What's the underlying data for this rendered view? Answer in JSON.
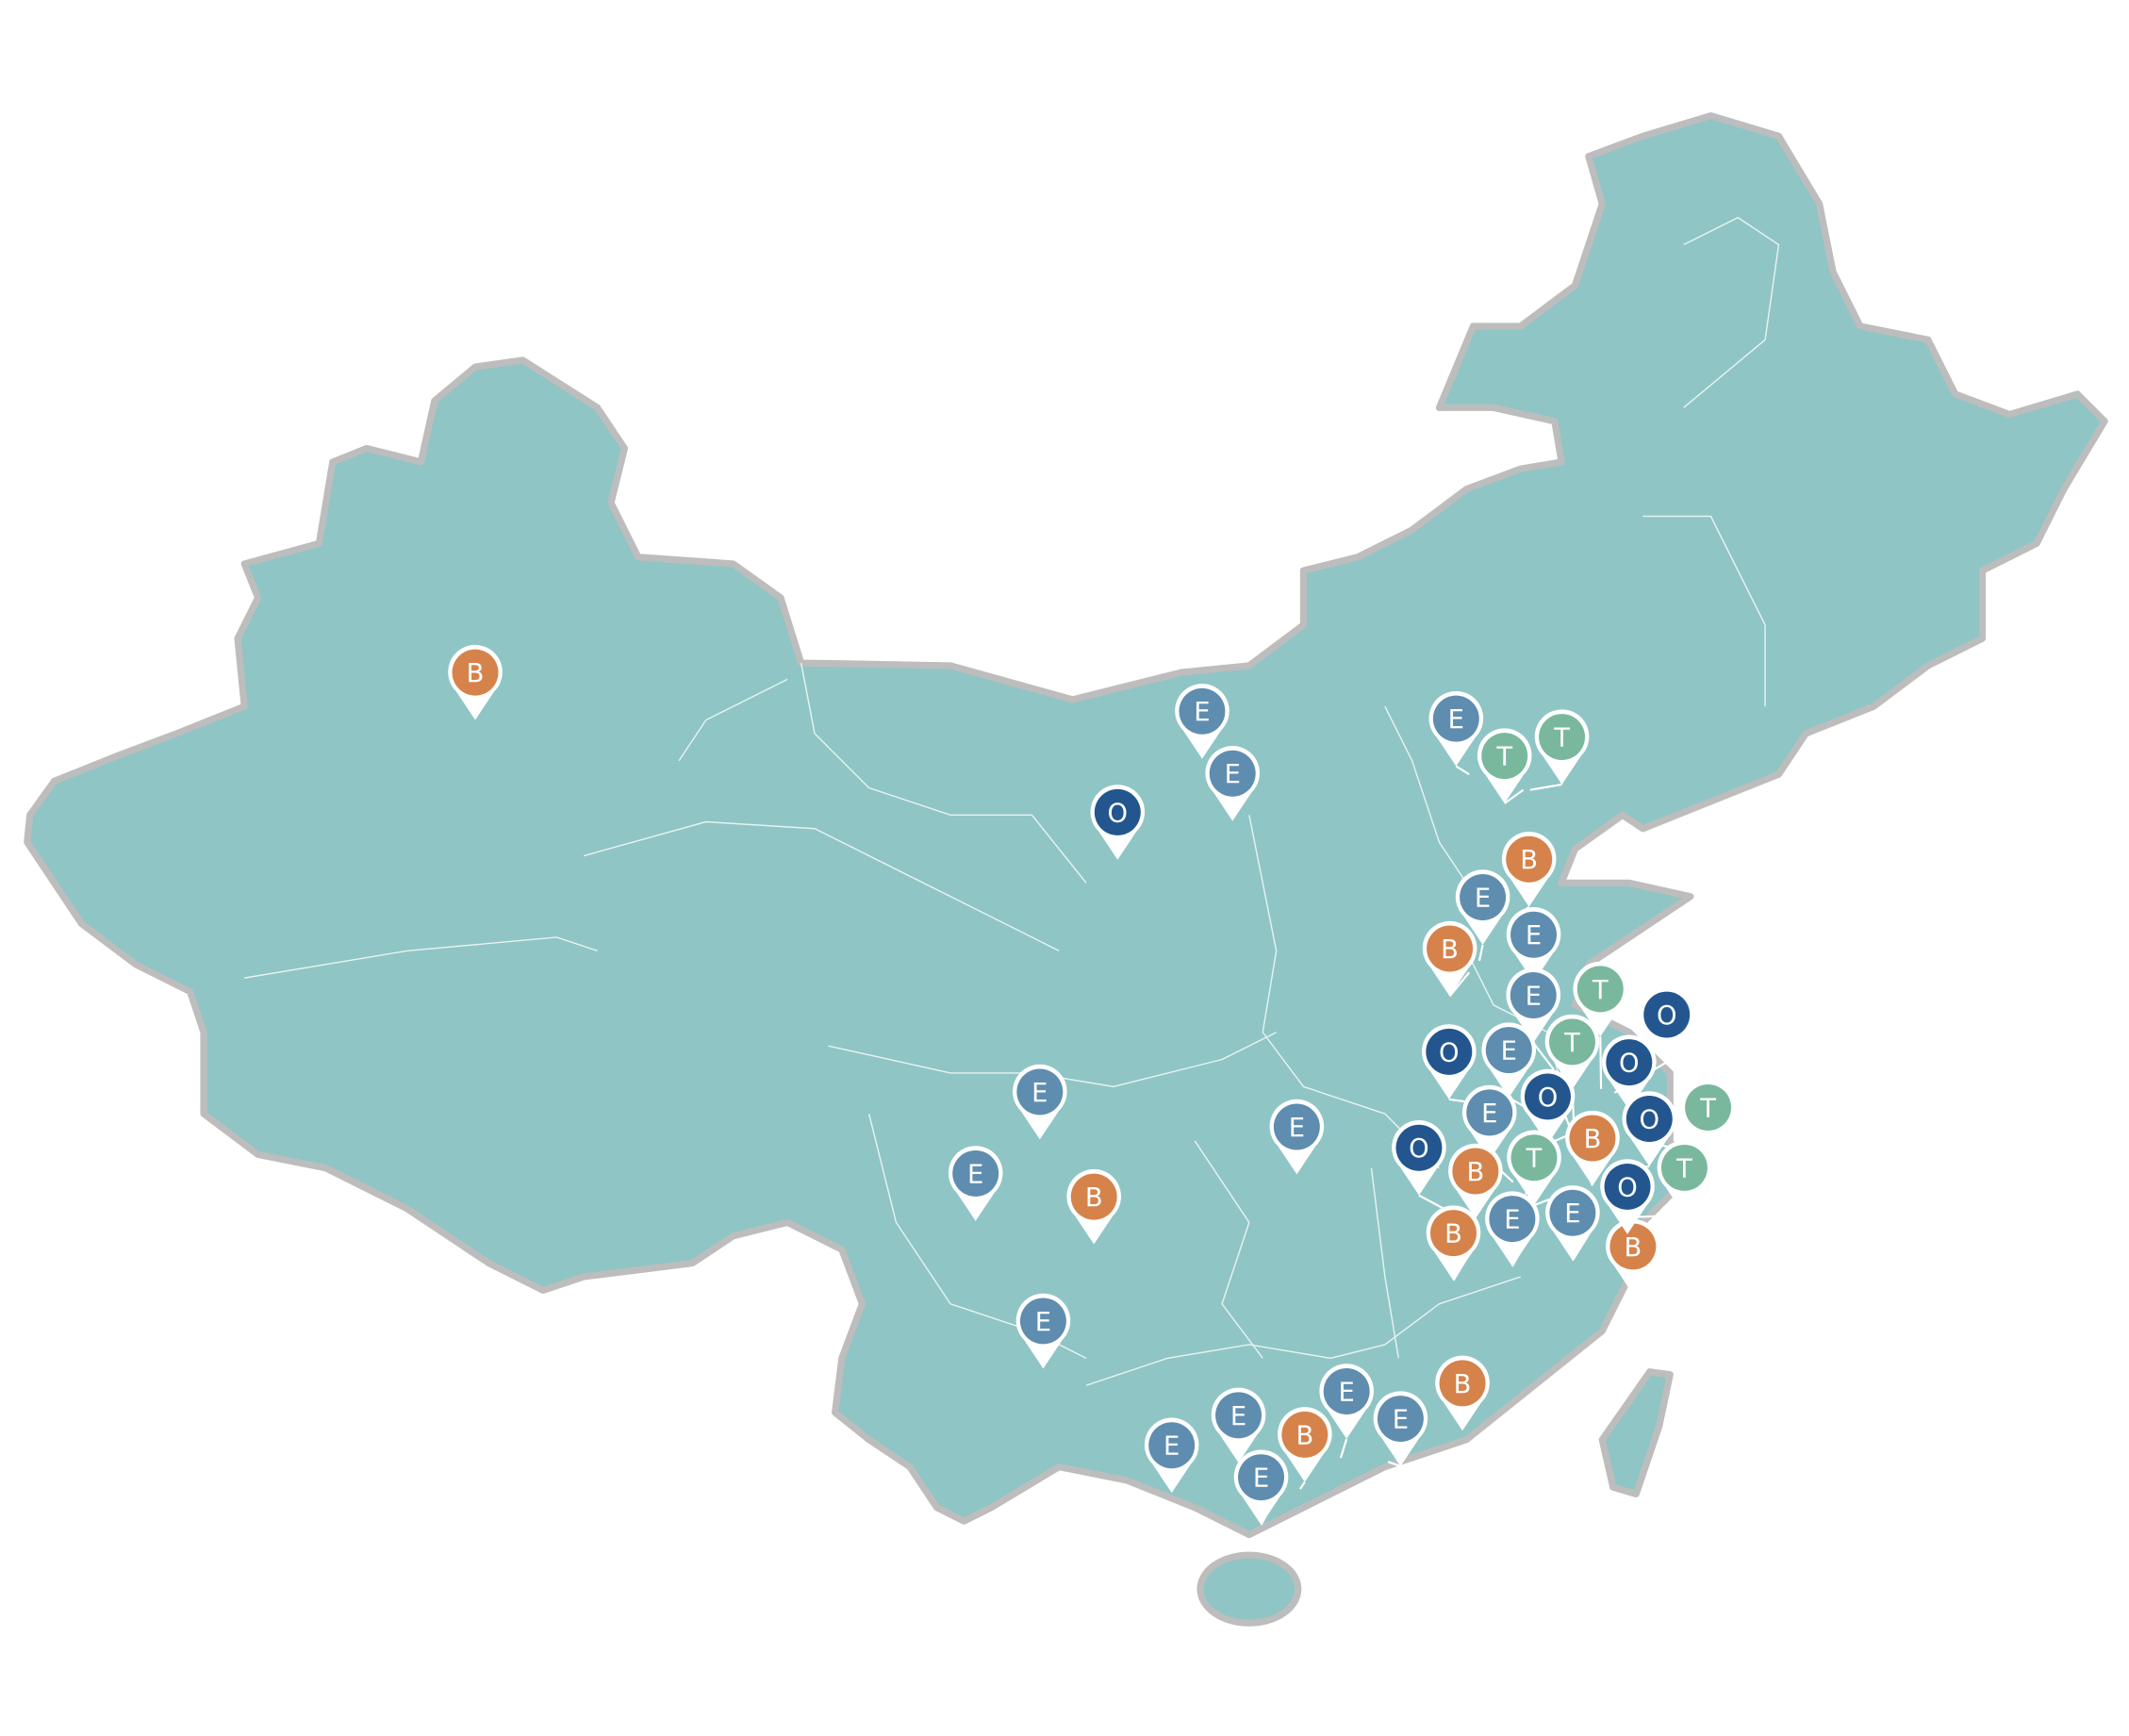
{
  "map": {
    "region_fill": "#8fc5c5",
    "border_color": "#bdbdbd",
    "province_line_color": "#e6f2f2"
  },
  "marker_colors": {
    "B": "#d5834b",
    "E": "#5f8db0",
    "O": "#23568f",
    "T": "#7ab89e"
  },
  "markers": [
    {
      "label": "B",
      "lon": 87.6,
      "lat": 43.8
    },
    {
      "label": "E",
      "lon": 109.1,
      "lat": 42.8
    },
    {
      "label": "E",
      "lon": 110.0,
      "lat": 41.2
    },
    {
      "label": "O",
      "lon": 106.6,
      "lat": 40.2
    },
    {
      "label": "E",
      "lon": 117.0,
      "lat": 42.4
    },
    {
      "label": "T",
      "lon": 118.6,
      "lat": 42.0
    },
    {
      "label": "T",
      "lon": 118.8,
      "lat": 42.0
    },
    {
      "label": "E",
      "lon": 117.3,
      "lat": 37.6
    },
    {
      "label": "B",
      "lon": 118.4,
      "lat": 38.7
    },
    {
      "label": "B",
      "lon": 117.0,
      "lat": 37.3
    },
    {
      "label": "E",
      "lon": 118.8,
      "lat": 37.1
    },
    {
      "label": "E",
      "lon": 119.5,
      "lat": 34.8
    },
    {
      "label": "O",
      "lon": 117.5,
      "lat": 33.9
    },
    {
      "label": "T",
      "lon": 120.9,
      "lat": 34.3
    },
    {
      "label": "O",
      "lon": 121.3,
      "lat": 34.2
    },
    {
      "label": "B",
      "lon": 119.8,
      "lat": 33.7
    },
    {
      "label": "E",
      "lon": 119.3,
      "lat": 33.5
    },
    {
      "label": "T",
      "lon": 120.1,
      "lat": 33.3
    },
    {
      "label": "O",
      "lon": 119.9,
      "lat": 33.1
    },
    {
      "label": "T",
      "lon": 122.4,
      "lat": 32.9
    },
    {
      "label": "O",
      "lon": 122.1,
      "lat": 32.9
    },
    {
      "label": "O",
      "lon": 121.1,
      "lat": 32.2
    },
    {
      "label": "E",
      "lon": 118.3,
      "lat": 31.9
    },
    {
      "label": "T",
      "lon": 119.8,
      "lat": 31.6
    },
    {
      "label": "B",
      "lon": 116.9,
      "lat": 31.0
    },
    {
      "label": "O",
      "lon": 116.5,
      "lat": 31.1
    },
    {
      "label": "E",
      "lon": 118.9,
      "lat": 30.7
    },
    {
      "label": "E",
      "lon": 120.5,
      "lat": 30.5
    },
    {
      "label": "B",
      "lon": 121.1,
      "lat": 30.2
    },
    {
      "label": "T",
      "lon": 121.9,
      "lat": 31.0
    },
    {
      "label": "O",
      "lon": 121.6,
      "lat": 31.1
    },
    {
      "label": "B",
      "lon": 116.9,
      "lat": 29.9
    },
    {
      "label": "E",
      "lon": 111.9,
      "lat": 32.1
    },
    {
      "label": "E",
      "lon": 104.3,
      "lat": 33.0
    },
    {
      "label": "E",
      "lon": 102.4,
      "lat": 30.9
    },
    {
      "label": "B",
      "lon": 105.9,
      "lat": 30.3
    },
    {
      "label": "E",
      "lon": 104.4,
      "lat": 27.1
    },
    {
      "label": "B",
      "lon": 116.8,
      "lat": 25.5
    },
    {
      "label": "E",
      "lon": 108.2,
      "lat": 23.9
    },
    {
      "label": "E",
      "lon": 110.4,
      "lat": 24.5
    },
    {
      "label": "E",
      "lon": 111.3,
      "lat": 23.8
    },
    {
      "label": "B",
      "lon": 112.0,
      "lat": 24.0
    },
    {
      "label": "E",
      "lon": 113.2,
      "lat": 24.8
    },
    {
      "label": "E",
      "lon": 114.6,
      "lat": 24.7
    }
  ]
}
